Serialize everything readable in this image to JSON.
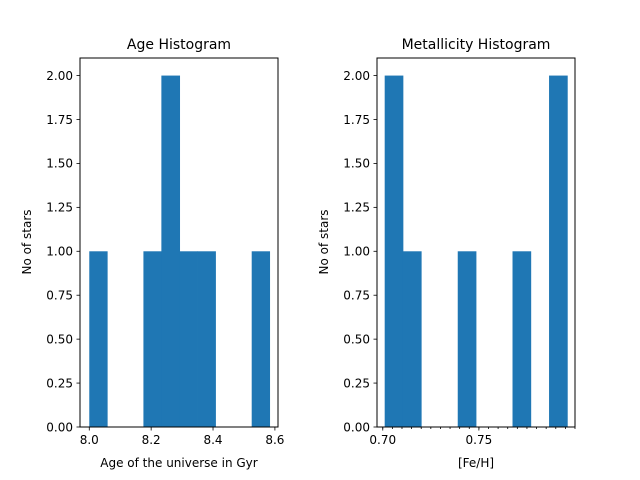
{
  "chart_data": [
    {
      "type": "bar",
      "title": "Age Histogram",
      "xlabel": "Age of the universe in Gyr",
      "ylabel": "No of stars",
      "xlim": [
        7.97,
        8.61
      ],
      "ylim": [
        0,
        2.1
      ],
      "xticks": [
        "8.0",
        "8.2",
        "8.4",
        "8.6"
      ],
      "xtick_values": [
        8.0,
        8.2,
        8.4,
        8.6
      ],
      "yticks": [
        "0.00",
        "0.25",
        "0.50",
        "0.75",
        "1.00",
        "1.25",
        "1.50",
        "1.75",
        "2.00"
      ],
      "ytick_values": [
        0,
        0.25,
        0.5,
        0.75,
        1.0,
        1.25,
        1.5,
        1.75,
        2.0
      ],
      "bins": [
        {
          "x0": 8.0,
          "x1": 8.058,
          "count": 1
        },
        {
          "x0": 8.058,
          "x1": 8.117,
          "count": 0
        },
        {
          "x0": 8.117,
          "x1": 8.175,
          "count": 0
        },
        {
          "x0": 8.175,
          "x1": 8.233,
          "count": 1
        },
        {
          "x0": 8.233,
          "x1": 8.292,
          "count": 2
        },
        {
          "x0": 8.292,
          "x1": 8.35,
          "count": 1
        },
        {
          "x0": 8.35,
          "x1": 8.408,
          "count": 1
        },
        {
          "x0": 8.408,
          "x1": 8.467,
          "count": 0
        },
        {
          "x0": 8.467,
          "x1": 8.525,
          "count": 0
        },
        {
          "x0": 8.525,
          "x1": 8.583,
          "count": 1
        }
      ],
      "color": "#1f77b4",
      "grid": false
    },
    {
      "type": "bar",
      "title": "Metallicity Histogram",
      "xlabel": "[Fe/H]",
      "ylabel": "No of stars",
      "xlim": [
        0.697,
        0.8
      ],
      "ylim": [
        0,
        2.1
      ],
      "xticks": [
        "0.70",
        "0.75"
      ],
      "xtick_values": [
        0.7,
        0.75
      ],
      "minor_xticks": true,
      "yticks": [
        "0.00",
        "0.25",
        "0.50",
        "0.75",
        "1.00",
        "1.25",
        "1.50",
        "1.75",
        "2.00"
      ],
      "ytick_values": [
        0,
        0.25,
        0.5,
        0.75,
        1.0,
        1.25,
        1.5,
        1.75,
        2.0
      ],
      "bins": [
        {
          "x0": 0.701,
          "x1": 0.7105,
          "count": 2
        },
        {
          "x0": 0.7105,
          "x1": 0.72,
          "count": 1
        },
        {
          "x0": 0.72,
          "x1": 0.7295,
          "count": 0
        },
        {
          "x0": 0.7295,
          "x1": 0.739,
          "count": 0
        },
        {
          "x0": 0.739,
          "x1": 0.7485,
          "count": 1
        },
        {
          "x0": 0.7485,
          "x1": 0.758,
          "count": 0
        },
        {
          "x0": 0.758,
          "x1": 0.7675,
          "count": 0
        },
        {
          "x0": 0.7675,
          "x1": 0.777,
          "count": 1
        },
        {
          "x0": 0.777,
          "x1": 0.7865,
          "count": 0
        },
        {
          "x0": 0.7865,
          "x1": 0.796,
          "count": 2
        }
      ],
      "color": "#1f77b4",
      "grid": false
    }
  ]
}
